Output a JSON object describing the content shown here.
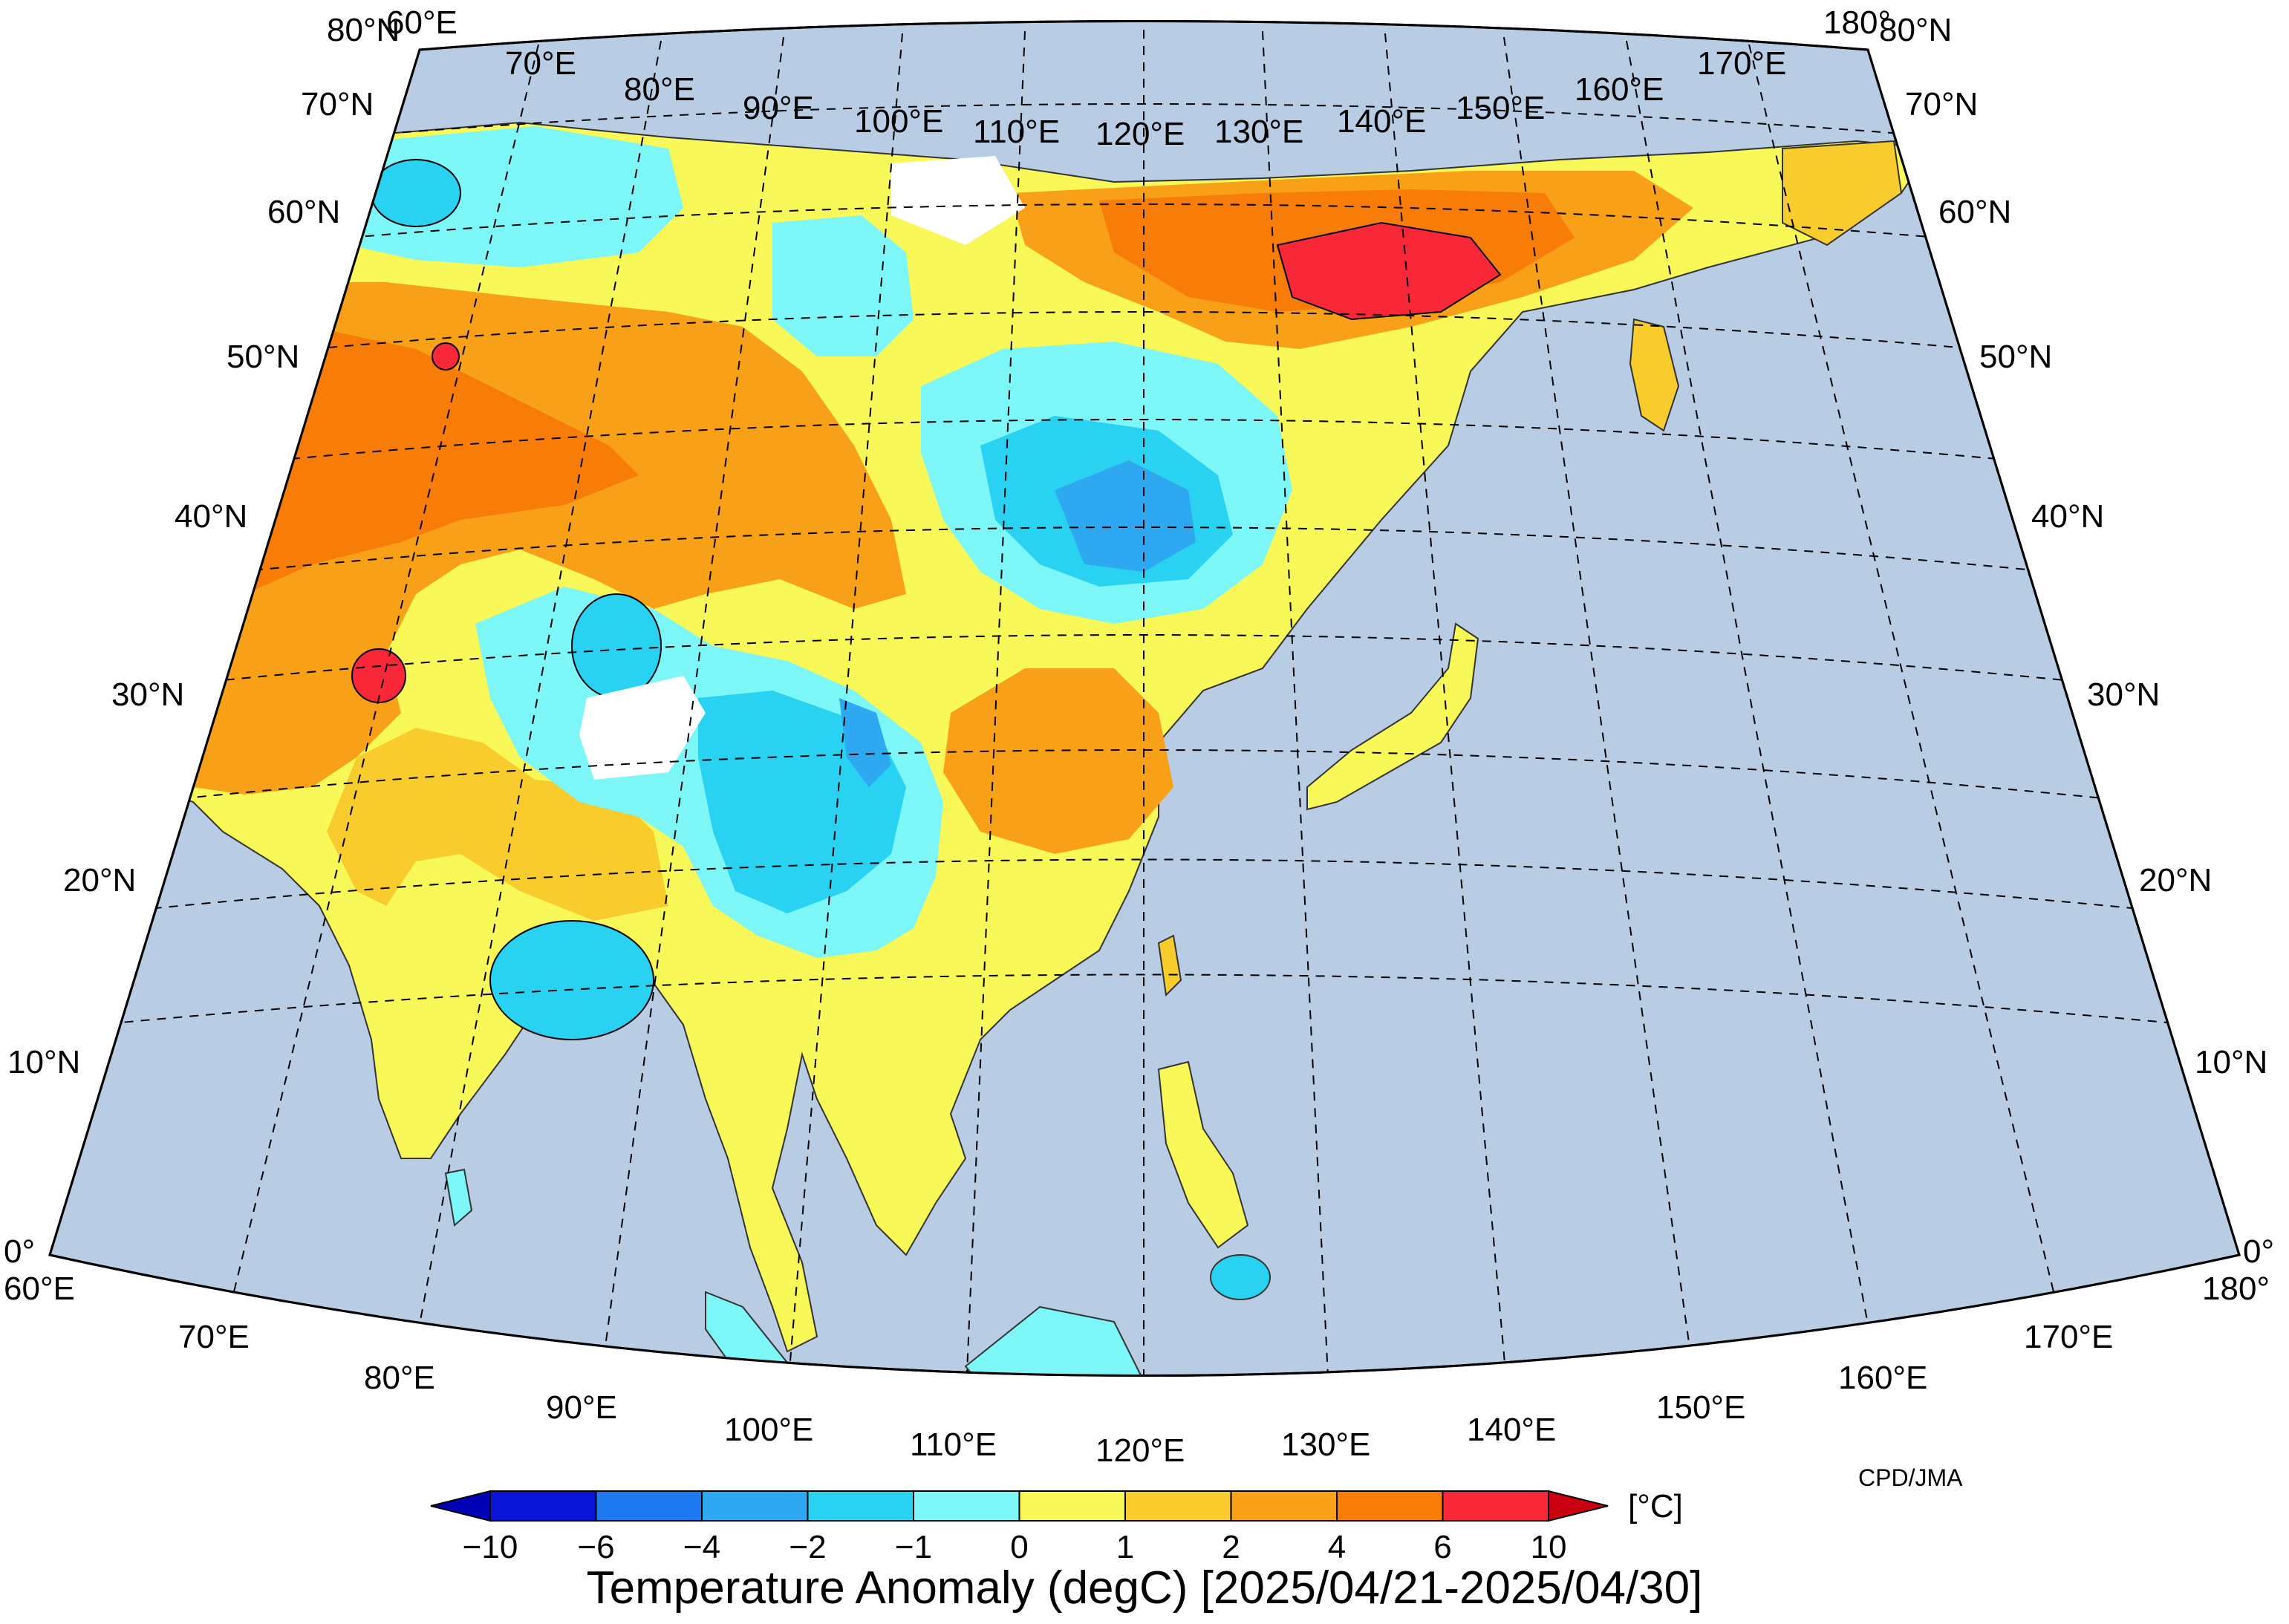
{
  "title": "Temperature Anomaly (degC) [2025/04/21-2025/04/30]",
  "credit": "CPD/JMA",
  "colorbar": {
    "unit": "[°C]",
    "ticks": [
      "−10",
      "−6",
      "−4",
      "−2",
      "−1",
      "0",
      "1",
      "2",
      "4",
      "6",
      "10"
    ],
    "colors": [
      "#0a14d6",
      "#1e78f0",
      "#2ea8f0",
      "#28d2f0",
      "#7cf6f6",
      "#f8f858",
      "#f8cc2c",
      "#f8a018",
      "#f87c08",
      "#f82838"
    ],
    "extend_low_color": "#0000b4",
    "extend_high_color": "#c80010"
  },
  "map": {
    "ocean_color": "#b8cce4",
    "longitude_labels_top": [
      "60°E",
      "70°E",
      "80°E",
      "90°E",
      "100°E",
      "110°E",
      "120°E",
      "130°E",
      "140°E",
      "150°E",
      "160°E",
      "170°E",
      "180°"
    ],
    "longitude_labels_bottom": [
      "60°E",
      "70°E",
      "80°E",
      "90°E",
      "100°E",
      "110°E",
      "120°E",
      "130°E",
      "140°E",
      "150°E",
      "160°E",
      "170°E",
      "180°"
    ],
    "latitude_labels_left": [
      "80°N",
      "70°N",
      "60°N",
      "50°N",
      "40°N",
      "30°N",
      "20°N",
      "10°N",
      "0°"
    ],
    "latitude_labels_right": [
      "80°N",
      "70°N",
      "60°N",
      "50°N",
      "40°N",
      "30°N",
      "20°N",
      "10°N",
      "0°"
    ]
  }
}
